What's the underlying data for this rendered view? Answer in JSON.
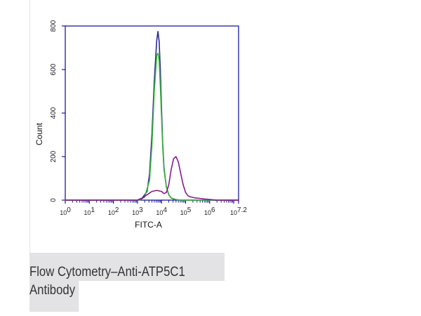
{
  "caption": {
    "line1": "Flow Cytometry–Anti-ATP5C1",
    "line2": "Antibody"
  },
  "chart_data": {
    "type": "line",
    "title": "",
    "xlabel": "FITC-A",
    "ylabel": "Count",
    "xscale": "log",
    "xlim": [
      0,
      7.2
    ],
    "ylim": [
      0,
      800
    ],
    "yticks": [
      0,
      200,
      400,
      600,
      800
    ],
    "xtick_labels": [
      {
        "base": "10",
        "exp": "0",
        "value": 0
      },
      {
        "base": "10",
        "exp": "1",
        "value": 1
      },
      {
        "base": "10",
        "exp": "2",
        "value": 2
      },
      {
        "base": "10",
        "exp": "3",
        "value": 3
      },
      {
        "base": "10",
        "exp": "4",
        "value": 4
      },
      {
        "base": "10",
        "exp": "5",
        "value": 5
      },
      {
        "base": "10",
        "exp": "6",
        "value": 6
      },
      {
        "base": "10",
        "exp": "7.2",
        "value": 7.2
      }
    ],
    "grid": false,
    "colors": {
      "axis": "#1a1aa0",
      "blue": "#2b2b8f",
      "green": "#3cb43c",
      "purple": "#8b1a8b"
    },
    "series": [
      {
        "color": "#2b2b8f",
        "x": [
          0,
          3.0,
          3.2,
          3.4,
          3.5,
          3.6,
          3.7,
          3.8,
          3.85,
          3.9,
          3.95,
          4.0,
          4.05,
          4.1,
          4.2,
          4.3,
          4.4,
          4.5,
          4.6,
          4.8,
          5.0,
          5.3,
          7.2
        ],
        "y": [
          0,
          0,
          10,
          40,
          120,
          300,
          550,
          735,
          775,
          730,
          600,
          420,
          260,
          150,
          60,
          25,
          10,
          5,
          2,
          0,
          0,
          0,
          0
        ]
      },
      {
        "color": "#3cb43c",
        "x": [
          0,
          3.1,
          3.3,
          3.5,
          3.6,
          3.7,
          3.8,
          3.85,
          3.9,
          3.95,
          4.0,
          4.05,
          4.1,
          4.2,
          4.3,
          4.4,
          4.6,
          4.8,
          7.2
        ],
        "y": [
          0,
          0,
          15,
          90,
          250,
          500,
          665,
          675,
          640,
          520,
          380,
          240,
          140,
          60,
          25,
          10,
          3,
          0,
          0
        ]
      },
      {
        "color": "#8b1a8b",
        "x": [
          0,
          3.0,
          3.2,
          3.4,
          3.6,
          3.8,
          4.0,
          4.1,
          4.2,
          4.3,
          4.4,
          4.5,
          4.6,
          4.7,
          4.8,
          4.9,
          5.0,
          5.1,
          5.2,
          5.4,
          5.6,
          5.8,
          6.0,
          6.3,
          7.2
        ],
        "y": [
          0,
          0,
          8,
          25,
          40,
          45,
          40,
          30,
          35,
          70,
          140,
          190,
          200,
          175,
          120,
          70,
          35,
          20,
          15,
          10,
          8,
          5,
          3,
          0,
          0
        ]
      }
    ]
  }
}
